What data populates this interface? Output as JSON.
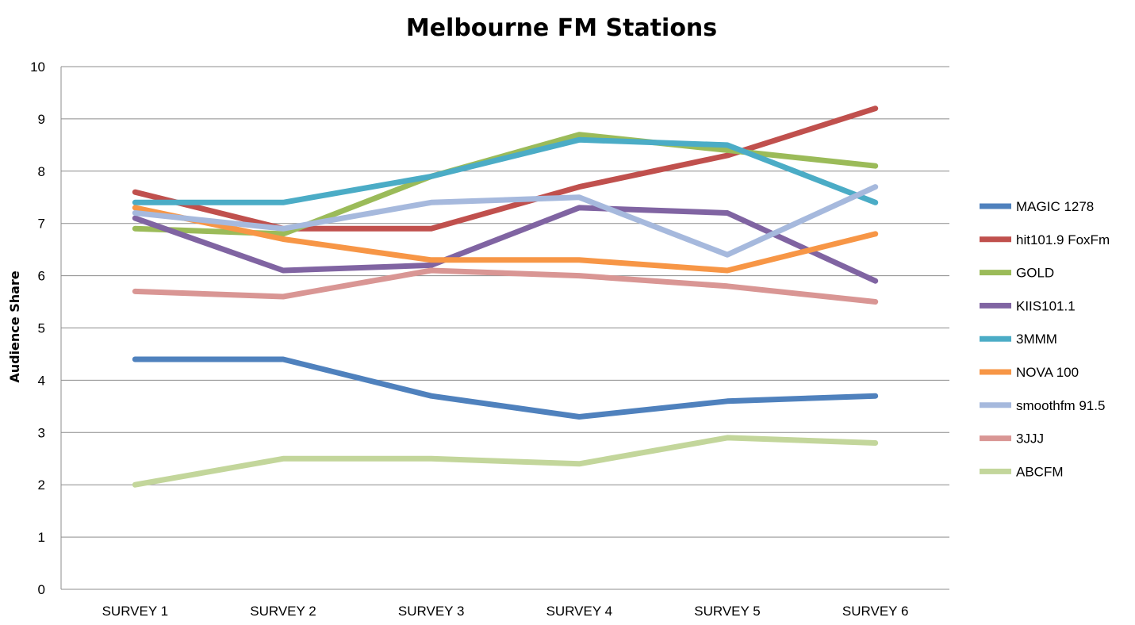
{
  "chart_data": {
    "type": "line",
    "title": "Melbourne FM Stations",
    "xlabel": "",
    "ylabel": "Audience Share",
    "categories": [
      "SURVEY 1",
      "SURVEY 2",
      "SURVEY 3",
      "SURVEY 4",
      "SURVEY 5",
      "SURVEY 6"
    ],
    "ylim": [
      0,
      10
    ],
    "yticks": [
      "0",
      "1",
      "2",
      "3",
      "4",
      "5",
      "6",
      "7",
      "8",
      "9",
      "10"
    ],
    "grid": true,
    "legend_position": "right",
    "series": [
      {
        "name": "MAGIC 1278",
        "color": "#4f81bd",
        "values": [
          4.4,
          4.4,
          3.7,
          3.3,
          3.6,
          3.7
        ]
      },
      {
        "name": "hit101.9 FoxFm",
        "color": "#c0504d",
        "values": [
          7.6,
          6.9,
          6.9,
          7.7,
          8.3,
          9.2
        ]
      },
      {
        "name": "GOLD",
        "color": "#9bbb59",
        "values": [
          6.9,
          6.8,
          7.9,
          8.7,
          8.4,
          8.1
        ]
      },
      {
        "name": "KIIS101.1",
        "color": "#8064a2",
        "values": [
          7.1,
          6.1,
          6.2,
          7.3,
          7.2,
          5.9
        ]
      },
      {
        "name": "3MMM",
        "color": "#4bacc6",
        "values": [
          7.4,
          7.4,
          7.9,
          8.6,
          8.5,
          7.4
        ]
      },
      {
        "name": "NOVA 100",
        "color": "#f79646",
        "values": [
          7.3,
          6.7,
          6.3,
          6.3,
          6.1,
          6.8
        ]
      },
      {
        "name": "smoothfm 91.5",
        "color": "#a6b9dd",
        "values": [
          7.2,
          6.9,
          7.4,
          7.5,
          6.4,
          7.7
        ]
      },
      {
        "name": "3JJJ",
        "color": "#d99694",
        "values": [
          5.7,
          5.6,
          6.1,
          6.0,
          5.8,
          5.5
        ]
      },
      {
        "name": "ABCFM",
        "color": "#c3d69b",
        "values": [
          2.0,
          2.5,
          2.5,
          2.4,
          2.9,
          2.8
        ]
      }
    ]
  }
}
